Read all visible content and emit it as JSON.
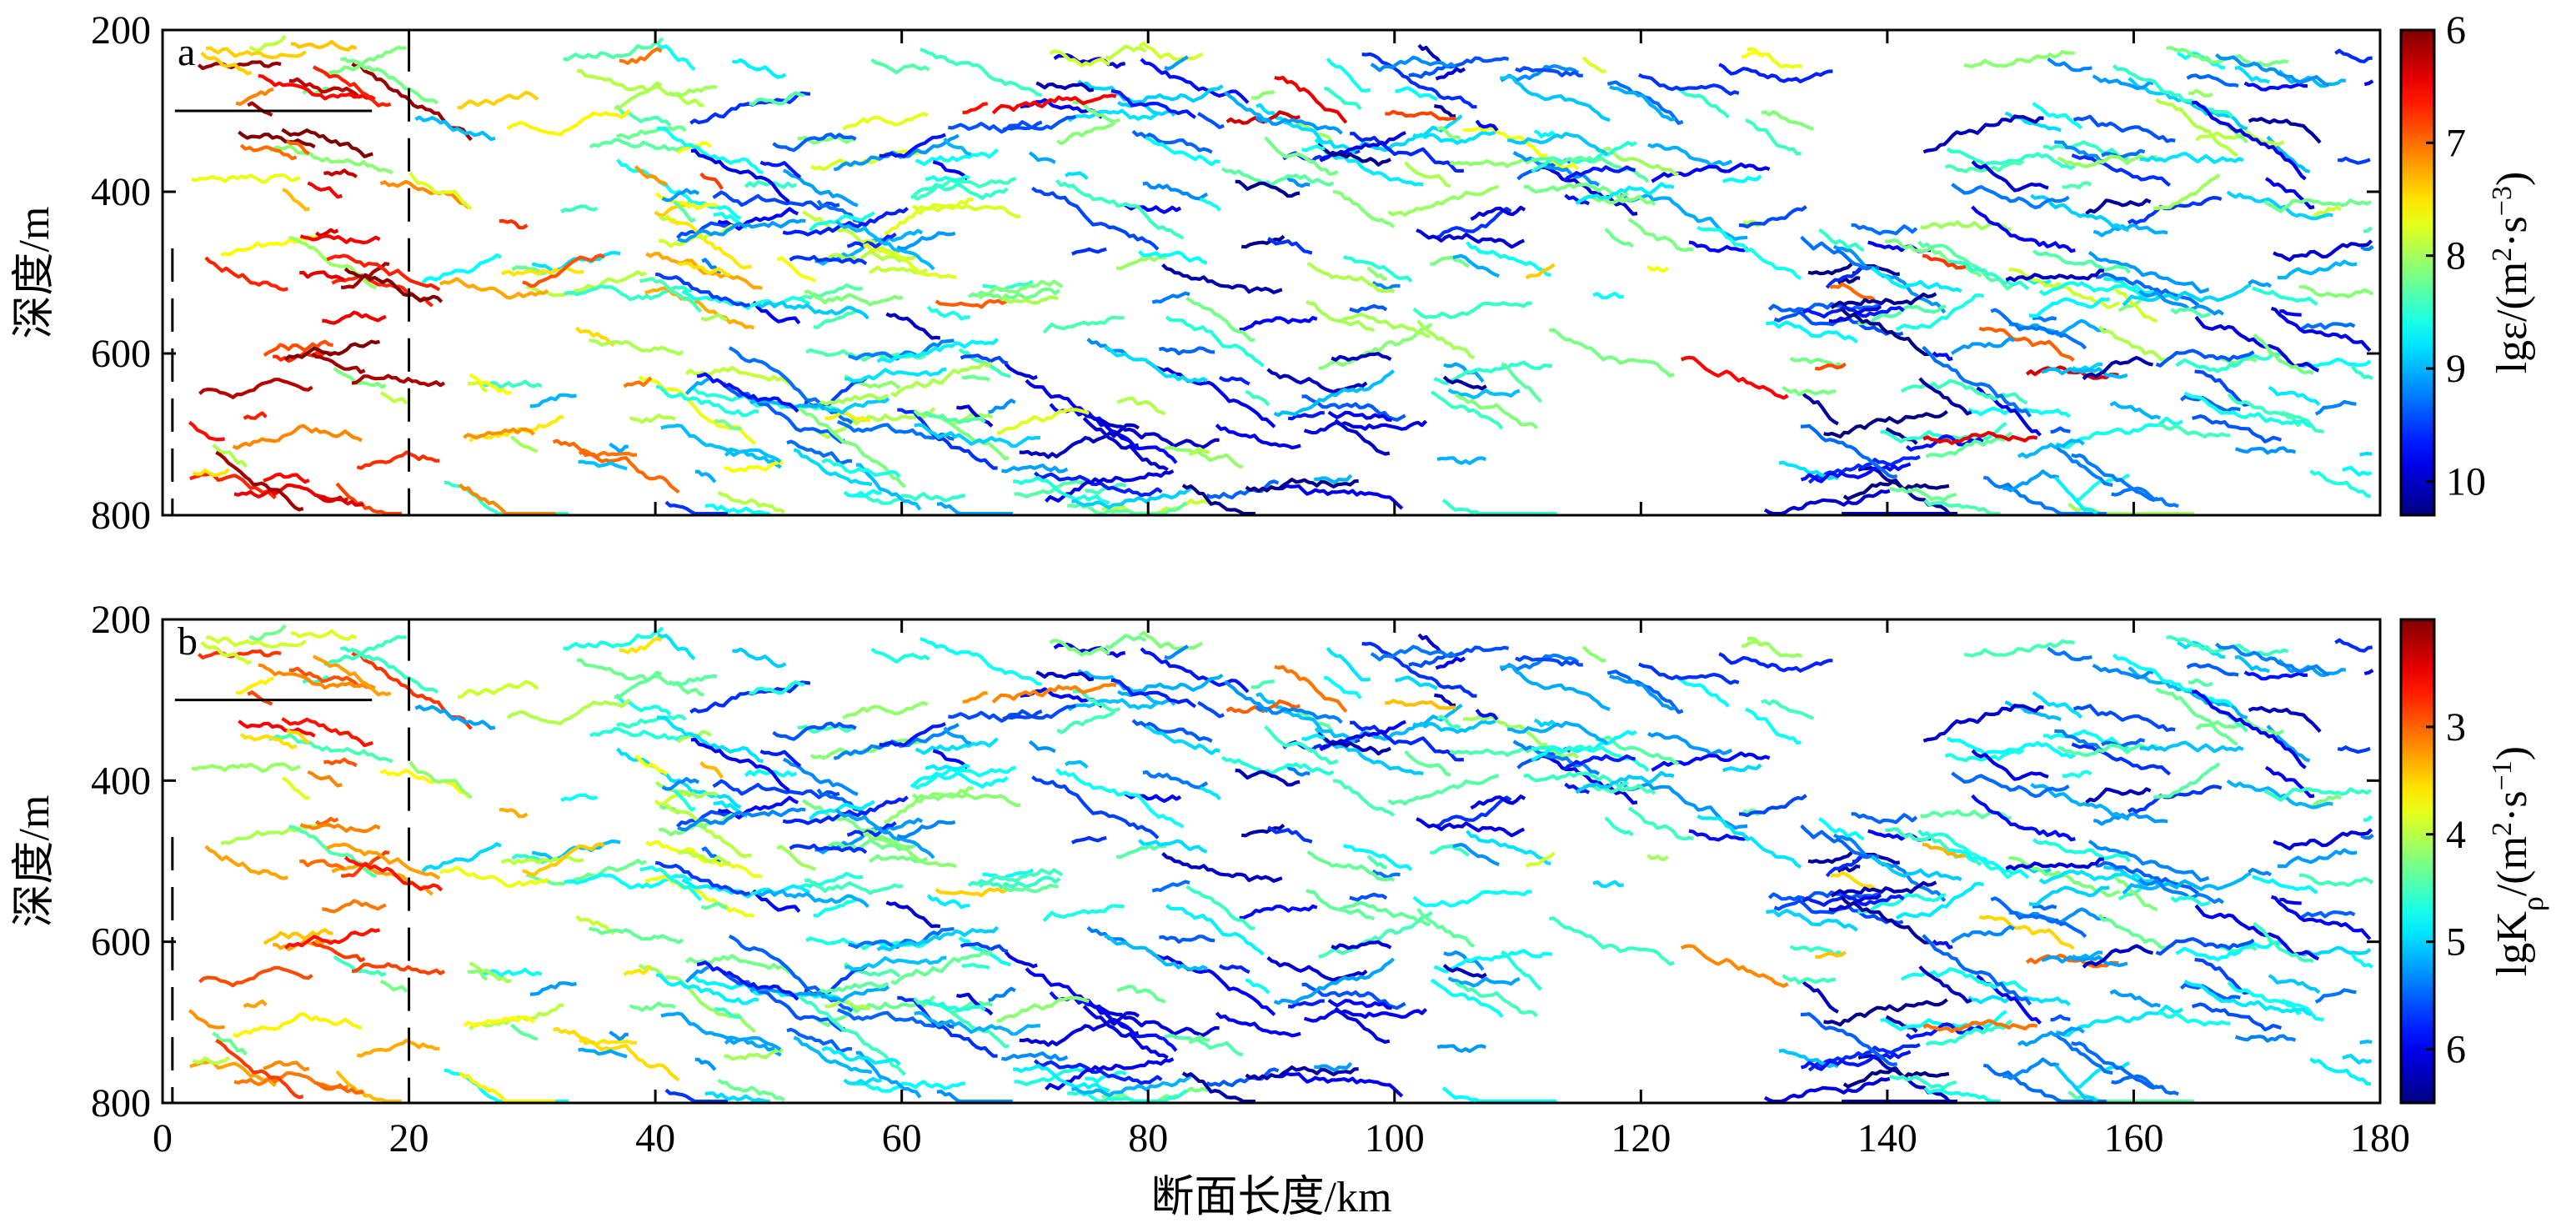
{
  "chart_data": [
    {
      "panel": "a",
      "type": "line",
      "description": "Panel a: short colored segments of lgε along a section",
      "xlabel": "",
      "ylabel": "深度/m",
      "xlim": [
        0,
        180
      ],
      "ylim": [
        800,
        200
      ],
      "xticks": [
        "0",
        "20",
        "40",
        "60",
        "80",
        "100",
        "120",
        "140",
        "160",
        "180"
      ],
      "yticks": [
        "200",
        "400",
        "600",
        "800"
      ],
      "colorbar": {
        "label_prefix": "lgε/(m",
        "label_mid": "·s",
        "label_suffix": ")",
        "sup1": "2",
        "sup2": "−3",
        "ticks": [
          "6",
          "7",
          "8",
          "9",
          "10"
        ],
        "range": [
          6,
          10.3
        ],
        "reversed": true,
        "colormap": "jet"
      },
      "seed": 17,
      "base_offset": 8.0,
      "base_scale": 0.6
    },
    {
      "panel": "b",
      "type": "line",
      "description": "Panel b: short colored segments of lgKρ along a section",
      "xlabel": "断面长度/km",
      "ylabel": "深度/m",
      "xlim": [
        0,
        180
      ],
      "ylim": [
        800,
        200
      ],
      "xticks": [
        "0",
        "20",
        "40",
        "60",
        "80",
        "100",
        "120",
        "140",
        "160",
        "180"
      ],
      "yticks": [
        "200",
        "400",
        "600",
        "800"
      ],
      "colorbar": {
        "label_prefix": "lgK",
        "label_rho": "ρ",
        "label_rest": "/(m",
        "label_mid": "·s",
        "label_suffix": ")",
        "sup1": "2",
        "sup2": "−1",
        "ticks": [
          "3",
          "4",
          "5",
          "6"
        ],
        "range": [
          2.0,
          6.5
        ],
        "reversed": true,
        "colormap": "jet"
      },
      "seed": 17,
      "base_offset": 4.4,
      "base_scale": 0.6
    }
  ]
}
